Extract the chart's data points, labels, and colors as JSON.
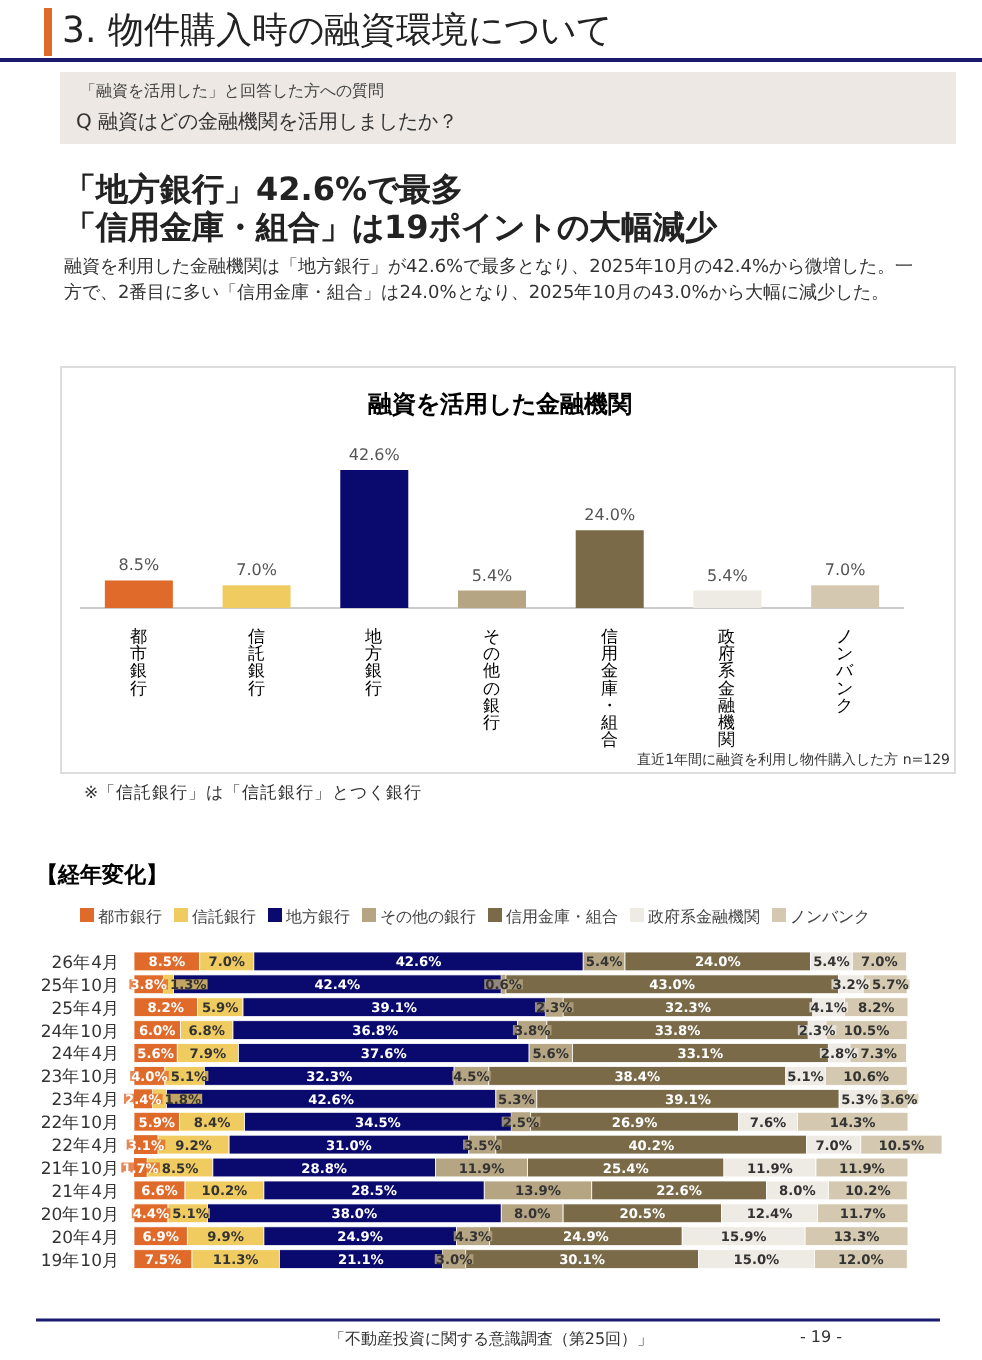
{
  "chart_data": [
    {
      "type": "bar",
      "title": "融資を活用した金融機関",
      "categories": [
        "都市銀行",
        "信託銀行",
        "地方銀行",
        "その他の銀行",
        "信用金庫・組合",
        "政府系金融機関",
        "ノンバンク"
      ],
      "values": [
        8.5,
        7.0,
        42.6,
        5.4,
        24.0,
        5.4,
        7.0
      ],
      "value_labels": [
        "8.5%",
        "7.0%",
        "42.6%",
        "5.4%",
        "24.0%",
        "5.4%",
        "7.0%"
      ],
      "colors": [
        "#e06a2a",
        "#f0cc60",
        "#0a0a6e",
        "#b5a583",
        "#7a6a48",
        "#eeeae4",
        "#d4c9b0"
      ],
      "annotations": [
        "3. 物件購入時の融資環境について",
        "「融資を活用した」と回答した方への質問",
        "Q 融資はどの金融機関を活用しましたか？",
        "「地方銀行」42.6%で最多",
        "「信用金庫・組合」は19ポイントの大幅減少",
        "融資を利用した金融機関は「地方銀行」が42.6%で最多となり、2025年10月の42.4%から微増した。一方で、2番目に多い「信用金庫・組合」は24.0%となり、2025年10月の43.0%から大幅に減少した。",
        "直近1年間に融資を利用し物件購入した方 n=129",
        "※「信託銀行」は「信託銀行」とつく銀行"
      ]
    },
    {
      "type": "bar",
      "orientation": "horizontal",
      "stacked": true,
      "legend": "top",
      "title": "【経年変化】",
      "categories": [
        "26年4月",
        "25年10月",
        "25年4月",
        "24年10月",
        "24年4月",
        "23年10月",
        "23年4月",
        "22年10月",
        "22年4月",
        "21年10月",
        "21年4月",
        "20年10月",
        "20年4月",
        "19年10月"
      ],
      "series": [
        {
          "name": "都市銀行",
          "color": "#e06a2a",
          "values": [
            8.5,
            3.8,
            8.2,
            6.0,
            5.6,
            4.0,
            2.4,
            5.9,
            3.1,
            1.7,
            6.6,
            4.4,
            6.9,
            7.5
          ],
          "value_labels": [
            "8.5%",
            "3.8%",
            "8.2%",
            "6.0%",
            "5.6%",
            "4.0%",
            "2.4%",
            "5.9%",
            "3.1%",
            "1.7%",
            "6.6%",
            "4.4%",
            "6.9%",
            "7.5%"
          ]
        },
        {
          "name": "信託銀行",
          "color": "#f0cc60",
          "values": [
            7.0,
            1.3,
            5.9,
            6.8,
            7.9,
            5.1,
            1.8,
            8.4,
            9.2,
            8.5,
            10.2,
            5.1,
            9.9,
            11.3
          ],
          "value_labels": [
            "7.0%",
            "1.3%",
            "5.9%",
            "6.8%",
            "7.9%",
            "5.1%",
            "1.8%",
            "8.4%",
            "9.2%",
            "8.5%",
            "10.2%",
            "5.1%",
            "9.9%",
            "11.3%"
          ]
        },
        {
          "name": "地方銀行",
          "color": "#0a0a6e",
          "values": [
            42.6,
            42.4,
            39.1,
            36.8,
            37.6,
            32.3,
            42.6,
            34.5,
            31.0,
            28.8,
            28.5,
            38.0,
            24.9,
            21.1
          ],
          "value_labels": [
            "42.6%",
            "42.4%",
            "39.1%",
            "36.8%",
            "37.6%",
            "32.3%",
            "42.6%",
            "34.5%",
            "31.0%",
            "28.8%",
            "28.5%",
            "38.0%",
            "24.9%",
            "21.1%"
          ]
        },
        {
          "name": "その他の銀行",
          "color": "#b5a583",
          "values": [
            5.4,
            0.6,
            2.3,
            3.8,
            5.6,
            4.5,
            5.3,
            2.5,
            3.5,
            11.9,
            13.9,
            8.0,
            4.3,
            3.0
          ],
          "value_labels": [
            "5.4%",
            "0.6%",
            "2.3%",
            "3.8%",
            "5.6%",
            "4.5%",
            "5.3%",
            "2.5%",
            "3.5%",
            "11.9%",
            "13.9%",
            "8.0%",
            "4.3%",
            "3.0%"
          ]
        },
        {
          "name": "信用金庫・組合",
          "color": "#7a6a48",
          "values": [
            24.0,
            43.0,
            32.3,
            33.8,
            33.1,
            38.4,
            39.1,
            26.9,
            40.2,
            25.4,
            22.6,
            20.5,
            24.9,
            30.1
          ],
          "value_labels": [
            "24.0%",
            "43.0%",
            "32.3%",
            "33.8%",
            "33.1%",
            "38.4%",
            "39.1%",
            "26.9%",
            "40.2%",
            "25.4%",
            "22.6%",
            "20.5%",
            "24.9%",
            "30.1%"
          ]
        },
        {
          "name": "政府系金融機関",
          "color": "#eeeae4",
          "values": [
            5.4,
            3.2,
            4.1,
            2.3,
            2.8,
            5.1,
            5.3,
            7.6,
            7.0,
            11.9,
            8.0,
            12.4,
            15.9,
            15.0
          ],
          "value_labels": [
            "5.4%",
            "3.2%",
            "4.1%",
            "2.3%",
            "2.8%",
            "5.1%",
            "5.3%",
            "7.6%",
            "7.0%",
            "11.9%",
            "8.0%",
            "12.4%",
            "15.9%",
            "15.0%"
          ]
        },
        {
          "name": "ノンバンク",
          "color": "#d4c9b0",
          "values": [
            7.0,
            5.7,
            8.2,
            10.5,
            7.3,
            10.6,
            3.6,
            14.3,
            10.5,
            11.9,
            10.2,
            11.7,
            13.3,
            12.0
          ],
          "value_labels": [
            "7.0%",
            "5.7%",
            "8.2%",
            "10.5%",
            "7.3%",
            "10.6%",
            "3.6%",
            "14.3%",
            "10.5%",
            "11.9%",
            "10.2%",
            "11.7%",
            "13.3%",
            "12.0%"
          ]
        }
      ],
      "annotations": [
        "「不動産投資に関する意識調査（第25回）」",
        "- 19 -"
      ]
    }
  ]
}
